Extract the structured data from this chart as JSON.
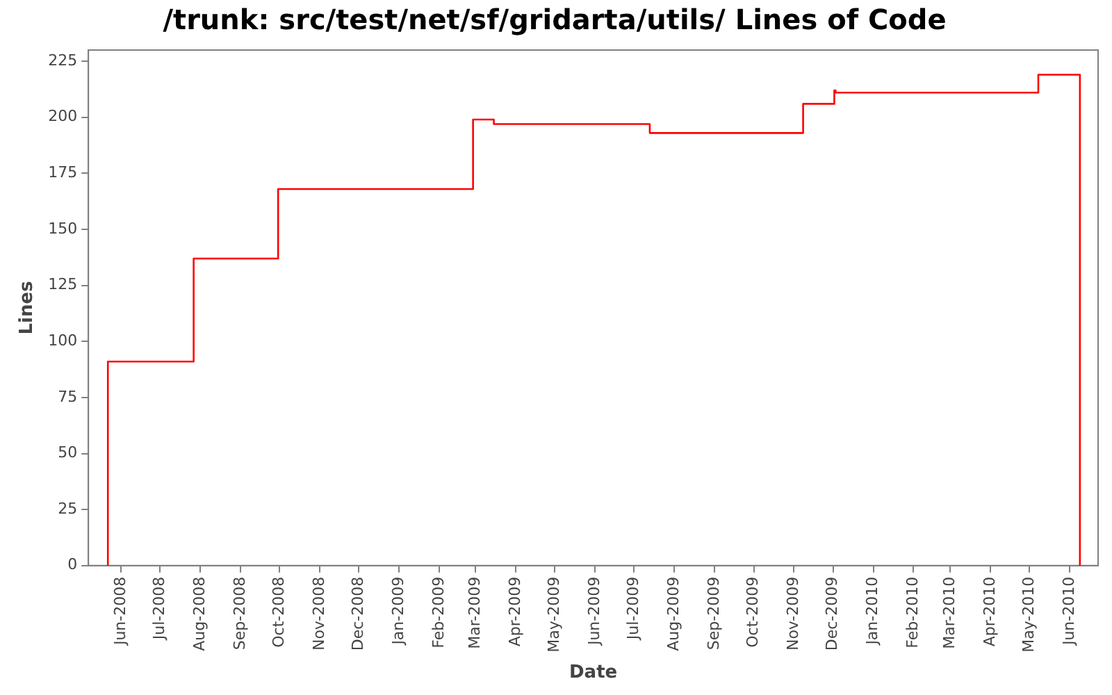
{
  "chart_data": {
    "type": "step",
    "title": "/trunk: src/test/net/sf/gridarta/utils/ Lines of Code",
    "xlabel": "Date",
    "ylabel": "Lines",
    "x": [
      "2008-05-22",
      "2008-05-22",
      "2008-07-27",
      "2008-09-30",
      "2009-02-27",
      "2009-03-15",
      "2009-07-13",
      "2009-11-08",
      "2009-12-02",
      "2009-12-03",
      "2010-05-08",
      "2010-06-09"
    ],
    "series": [
      {
        "color": "#ff0000",
        "values": [
          0,
          91,
          137,
          168,
          199,
          197,
          193,
          206,
          212,
          211,
          219,
          0
        ]
      }
    ],
    "xlim": [
      "2008-05-07",
      "2010-06-23"
    ],
    "xticks": [
      {
        "value": "2008-06",
        "label": "Jun-2008"
      },
      {
        "value": "2008-07",
        "label": "Jul-2008"
      },
      {
        "value": "2008-08",
        "label": "Aug-2008"
      },
      {
        "value": "2008-09",
        "label": "Sep-2008"
      },
      {
        "value": "2008-10",
        "label": "Oct-2008"
      },
      {
        "value": "2008-11",
        "label": "Nov-2008"
      },
      {
        "value": "2008-12",
        "label": "Dec-2008"
      },
      {
        "value": "2009-01",
        "label": "Jan-2009"
      },
      {
        "value": "2009-02",
        "label": "Feb-2009"
      },
      {
        "value": "2009-03",
        "label": "Mar-2009"
      },
      {
        "value": "2009-04",
        "label": "Apr-2009"
      },
      {
        "value": "2009-05",
        "label": "May-2009"
      },
      {
        "value": "2009-06",
        "label": "Jun-2009"
      },
      {
        "value": "2009-07",
        "label": "Jul-2009"
      },
      {
        "value": "2009-08",
        "label": "Aug-2009"
      },
      {
        "value": "2009-09",
        "label": "Sep-2009"
      },
      {
        "value": "2009-10",
        "label": "Oct-2009"
      },
      {
        "value": "2009-11",
        "label": "Nov-2009"
      },
      {
        "value": "2009-12",
        "label": "Dec-2009"
      },
      {
        "value": "2010-01",
        "label": "Jan-2010"
      },
      {
        "value": "2010-02",
        "label": "Feb-2010"
      },
      {
        "value": "2010-03",
        "label": "Mar-2010"
      },
      {
        "value": "2010-04",
        "label": "Apr-2010"
      },
      {
        "value": "2010-05",
        "label": "May-2010"
      },
      {
        "value": "2010-06",
        "label": "Jun-2010"
      }
    ],
    "ylim": [
      0,
      230
    ],
    "yticks": [
      0,
      25,
      50,
      75,
      100,
      125,
      150,
      175,
      200,
      225
    ],
    "grid": false,
    "legend": false,
    "marker": "none",
    "line_style": "solid"
  }
}
